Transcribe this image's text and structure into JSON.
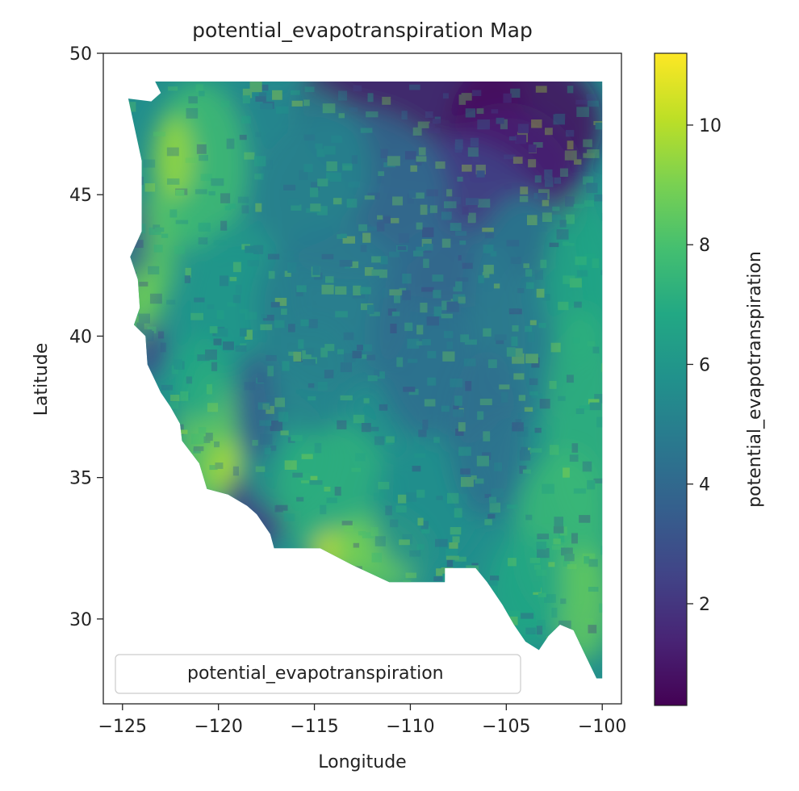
{
  "chart_data": {
    "type": "heatmap",
    "title": "potential_evapotranspiration Map",
    "xlabel": "Longitude",
    "ylabel": "Latitude",
    "xlim": [
      -126,
      -99
    ],
    "ylim": [
      27,
      50
    ],
    "x_ticks": [
      -125,
      -120,
      -115,
      -110,
      -105,
      -100
    ],
    "x_tick_labels": [
      "−125",
      "−120",
      "−115",
      "−110",
      "−105",
      "−100"
    ],
    "y_ticks": [
      30,
      35,
      40,
      45,
      50
    ],
    "y_tick_labels": [
      "30",
      "35",
      "40",
      "45",
      "50"
    ],
    "colorbar": {
      "label": "potential_evapotranspiration",
      "colormap": "viridis",
      "range": [
        0.3,
        11.2
      ],
      "ticks": [
        2,
        4,
        6,
        8,
        10
      ],
      "tick_labels": [
        "2",
        "4",
        "6",
        "8",
        "10"
      ]
    },
    "legend": {
      "label": "potential_evapotranspiration",
      "placement": "lower-left"
    },
    "grid": false,
    "region_outline": [
      [
        -123.3,
        49.0
      ],
      [
        -100.0,
        49.0
      ],
      [
        -100.0,
        27.9
      ],
      [
        -100.3,
        27.9
      ],
      [
        -100.8,
        28.6
      ],
      [
        -101.5,
        29.6
      ],
      [
        -102.2,
        29.8
      ],
      [
        -102.8,
        29.4
      ],
      [
        -103.3,
        28.9
      ],
      [
        -104.0,
        29.2
      ],
      [
        -104.6,
        29.8
      ],
      [
        -105.2,
        30.5
      ],
      [
        -106.0,
        31.3
      ],
      [
        -106.6,
        31.8
      ],
      [
        -108.2,
        31.8
      ],
      [
        -108.2,
        31.3
      ],
      [
        -111.1,
        31.3
      ],
      [
        -113.0,
        31.9
      ],
      [
        -114.7,
        32.5
      ],
      [
        -117.1,
        32.5
      ],
      [
        -117.3,
        33.0
      ],
      [
        -118.0,
        33.7
      ],
      [
        -118.5,
        34.0
      ],
      [
        -119.5,
        34.4
      ],
      [
        -120.6,
        34.6
      ],
      [
        -121.0,
        35.5
      ],
      [
        -121.9,
        36.3
      ],
      [
        -122.0,
        36.9
      ],
      [
        -122.5,
        37.5
      ],
      [
        -123.0,
        38.0
      ],
      [
        -123.7,
        39.0
      ],
      [
        -123.8,
        40.0
      ],
      [
        -124.4,
        40.4
      ],
      [
        -124.1,
        41.0
      ],
      [
        -124.2,
        42.0
      ],
      [
        -124.6,
        42.8
      ],
      [
        -124.0,
        43.7
      ],
      [
        -124.0,
        46.2
      ],
      [
        -124.7,
        48.4
      ],
      [
        -123.5,
        48.3
      ],
      [
        -123.0,
        48.6
      ],
      [
        -123.3,
        49.0
      ]
    ],
    "value_field": [
      [
        1.5,
        3.0
      ],
      [
        3.5,
        3.0
      ],
      [
        6.5,
        5.5
      ],
      [
        7.0,
        6.0
      ],
      [
        7.5,
        6.5
      ],
      [
        8.5,
        7.5
      ]
    ],
    "value_field_note": ""
  }
}
